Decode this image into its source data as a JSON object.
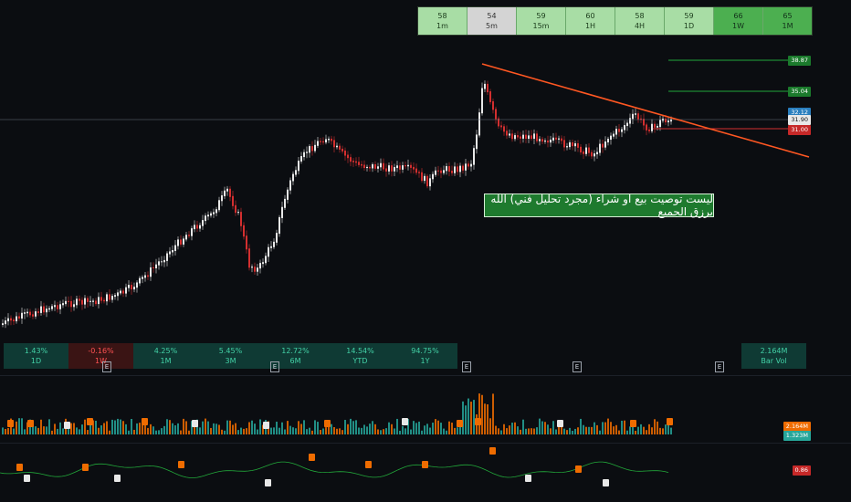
{
  "timeframes": [
    {
      "value": "58",
      "label": "1m",
      "style": "light"
    },
    {
      "value": "54",
      "label": "5m",
      "style": "gray"
    },
    {
      "value": "59",
      "label": "15m",
      "style": "light"
    },
    {
      "value": "60",
      "label": "1H",
      "style": "light"
    },
    {
      "value": "58",
      "label": "4H",
      "style": "light"
    },
    {
      "value": "59",
      "label": "1D",
      "style": "light"
    },
    {
      "value": "66",
      "label": "1W",
      "style": "dark"
    },
    {
      "value": "65",
      "label": "1M",
      "style": "dark"
    }
  ],
  "performance": [
    {
      "value": "1.43%",
      "label": "1D",
      "style": "pos"
    },
    {
      "value": "-0.16%",
      "label": "1W",
      "style": "neg"
    },
    {
      "value": "4.25%",
      "label": "1M",
      "style": "pos"
    },
    {
      "value": "5.45%",
      "label": "3M",
      "style": "pos"
    },
    {
      "value": "12.72%",
      "label": "6M",
      "style": "pos"
    },
    {
      "value": "14.54%",
      "label": "YTD",
      "style": "pos"
    },
    {
      "value": "94.75%",
      "label": "1Y",
      "style": "pos"
    }
  ],
  "bar_vol": {
    "value": "2.164M",
    "label": "Bar Vol"
  },
  "note_text": "ليست توصيت بيع او شراء (مجرد تحليل فني) الله يرزق الجميع",
  "price_labels": {
    "target2": "38.87",
    "target1": "35.04",
    "current_top": "32.12",
    "current": "31.90",
    "support": "31.00"
  },
  "earnings_marker": "E",
  "volume_labels": {
    "a": "2.164M",
    "b": "1.323M"
  },
  "oscillator_label": "0.86",
  "colors": {
    "up": "#e8e8e8",
    "down": "#d32f2f",
    "trend": "#ff5722",
    "target": "#22a83a",
    "support": "#d32f2f",
    "vol_up": "#26a69a",
    "vol_down": "#ef6c00"
  }
}
